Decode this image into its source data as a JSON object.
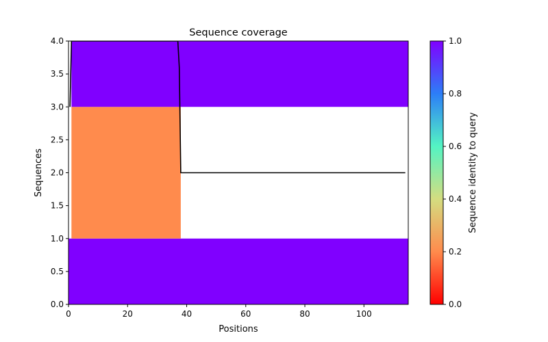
{
  "chart_data": {
    "type": "heatmap",
    "title": "Sequence coverage",
    "xlabel": "Positions",
    "ylabel": "Sequences",
    "xlim": [
      0,
      115
    ],
    "ylim": [
      0,
      4
    ],
    "x_ticks": [
      0,
      20,
      40,
      60,
      80,
      100
    ],
    "x_tick_labels": [
      "0",
      "20",
      "40",
      "60",
      "80",
      "100"
    ],
    "y_ticks": [
      0,
      0.5,
      1.0,
      1.5,
      2.0,
      2.5,
      3.0,
      3.5,
      4.0
    ],
    "y_tick_labels": [
      "0.0",
      "0.5",
      "1.0",
      "1.5",
      "2.0",
      "2.5",
      "3.0",
      "3.5",
      "4.0"
    ],
    "grid": false,
    "rows": [
      {
        "y0": 0,
        "y1": 1,
        "x0": 0,
        "x1": 115,
        "identity": 1.0
      },
      {
        "y0": 1,
        "y1": 3,
        "x0": 1,
        "x1": 38,
        "identity": 0.2
      },
      {
        "y0": 3,
        "y1": 4,
        "x0": 1,
        "x1": 115,
        "identity": 1.0
      }
    ],
    "coverage_line": {
      "x": [
        0.5,
        1,
        37,
        37.5,
        38,
        114
      ],
      "y": [
        3,
        4,
        4,
        3.6,
        2,
        2
      ]
    },
    "colorbar": {
      "label": "Sequence identity to query",
      "colormap": "rainbow",
      "range": [
        0,
        1
      ],
      "ticks": [
        0,
        0.2,
        0.4,
        0.6,
        0.8,
        1.0
      ],
      "tick_labels": [
        "0.0",
        "0.2",
        "0.4",
        "0.6",
        "0.8",
        "1.0"
      ]
    },
    "colors": {
      "identity_1": "#8000ff",
      "identity_0_2": "#ff8b4d",
      "line": "#000000"
    }
  }
}
